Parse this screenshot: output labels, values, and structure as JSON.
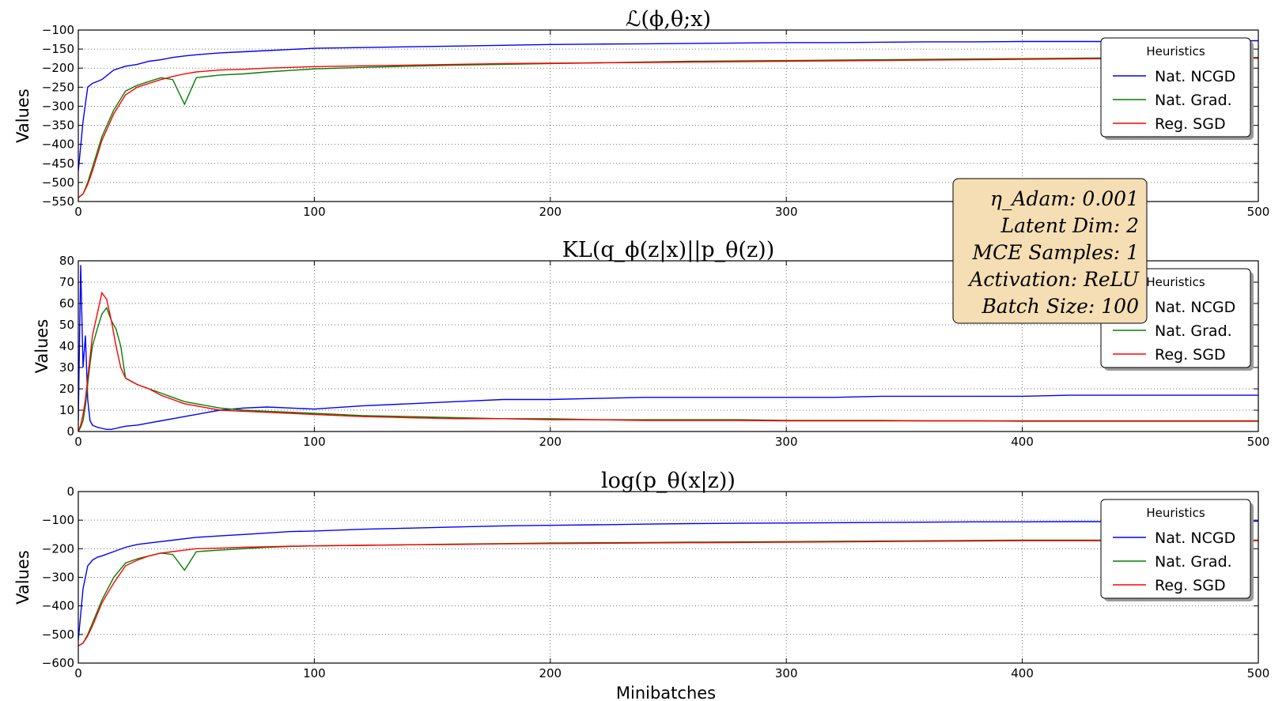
{
  "xlabel": "Minibatches",
  "info_box": {
    "lines": [
      {
        "key": "η_Adam",
        "value": "0.001"
      },
      {
        "key": "Latent Dim",
        "value": "2"
      },
      {
        "key": "MCE Samples",
        "value": "1"
      },
      {
        "key": "Activation",
        "value": "ReLU"
      },
      {
        "key": "Batch Size",
        "value": "100"
      }
    ]
  },
  "colors": {
    "Nat. NCGD": "#0000ff",
    "Nat. Grad.": "#008000",
    "Reg. SGD": "#ff0000"
  },
  "chart_data": [
    {
      "type": "line",
      "title": "ℒ(ϕ,θ;x)",
      "ylabel": "Values",
      "xlabel": "",
      "xlim": [
        0,
        500
      ],
      "ylim": [
        -550,
        -100
      ],
      "xticks": [
        0,
        100,
        200,
        300,
        400,
        500
      ],
      "yticks": [
        -550,
        -500,
        -450,
        -400,
        -350,
        -300,
        -250,
        -200,
        -150,
        -100
      ],
      "grid": true,
      "legend": {
        "title": "Heuristics",
        "position": "top-right"
      },
      "x": [
        0,
        2,
        4,
        6,
        8,
        10,
        15,
        20,
        25,
        30,
        35,
        40,
        45,
        50,
        60,
        70,
        80,
        90,
        100,
        120,
        140,
        160,
        180,
        200,
        220,
        240,
        260,
        280,
        300,
        320,
        340,
        360,
        380,
        400,
        420,
        440,
        460,
        480,
        500
      ],
      "series": [
        {
          "name": "Nat. NCGD",
          "values": [
            -470,
            -340,
            -250,
            -240,
            -235,
            -230,
            -205,
            -195,
            -190,
            -182,
            -178,
            -172,
            -168,
            -165,
            -160,
            -157,
            -154,
            -151,
            -148,
            -146,
            -144,
            -142,
            -140,
            -138,
            -137,
            -136,
            -135,
            -134,
            -133,
            -133,
            -132,
            -131,
            -131,
            -130,
            -130,
            -130,
            -129,
            -129,
            -128
          ]
        },
        {
          "name": "Nat. Grad.",
          "values": [
            -540,
            -530,
            -500,
            -460,
            -420,
            -380,
            -310,
            -260,
            -245,
            -235,
            -225,
            -230,
            -295,
            -225,
            -218,
            -215,
            -210,
            -206,
            -202,
            -198,
            -195,
            -192,
            -190,
            -188,
            -186,
            -184,
            -182,
            -181,
            -180,
            -179,
            -178,
            -177,
            -176,
            -175,
            -174,
            -173,
            -172,
            -172,
            -172
          ]
        },
        {
          "name": "Reg. SGD",
          "values": [
            -540,
            -530,
            -505,
            -470,
            -430,
            -390,
            -320,
            -270,
            -250,
            -240,
            -230,
            -222,
            -215,
            -210,
            -205,
            -203,
            -200,
            -198,
            -196,
            -194,
            -192,
            -190,
            -188,
            -187,
            -186,
            -185,
            -184,
            -183,
            -182,
            -181,
            -180,
            -179,
            -178,
            -177,
            -176,
            -175,
            -174,
            -174,
            -174
          ]
        }
      ]
    },
    {
      "type": "line",
      "title": "KL(q_ϕ(z|x)||p_θ(z))",
      "ylabel": "Values",
      "xlabel": "",
      "xlim": [
        0,
        500
      ],
      "ylim": [
        0,
        80
      ],
      "xticks": [
        0,
        100,
        200,
        300,
        400,
        500
      ],
      "yticks": [
        0,
        10,
        20,
        30,
        40,
        50,
        60,
        70,
        80
      ],
      "grid": true,
      "legend": {
        "title": "Heuristics",
        "position": "top-right"
      },
      "x": [
        0,
        1,
        2,
        3,
        4,
        5,
        6,
        8,
        10,
        12,
        14,
        16,
        18,
        20,
        25,
        30,
        35,
        40,
        45,
        50,
        60,
        70,
        80,
        90,
        100,
        120,
        140,
        160,
        180,
        200,
        220,
        240,
        260,
        280,
        300,
        320,
        340,
        360,
        380,
        400,
        420,
        440,
        460,
        480,
        500
      ],
      "series": [
        {
          "name": "Nat. NCGD",
          "values": [
            5,
            78,
            30,
            45,
            15,
            5,
            3,
            2,
            1.5,
            1,
            1,
            1.5,
            2,
            2.5,
            3,
            4,
            5,
            6,
            7,
            8,
            10,
            11,
            11.5,
            11,
            10.5,
            12,
            13,
            14,
            15,
            15,
            15.5,
            16,
            16,
            16,
            16,
            16,
            16.5,
            16.5,
            16.5,
            16.5,
            17,
            17,
            17,
            17,
            17
          ]
        },
        {
          "name": "Nat. Grad.",
          "values": [
            0,
            2,
            5,
            12,
            22,
            32,
            40,
            48,
            55,
            58,
            52,
            48,
            40,
            25,
            22,
            20,
            18,
            16,
            14,
            13,
            11,
            10,
            9.5,
            9,
            8.5,
            7.5,
            7,
            6.5,
            6,
            6,
            5.5,
            5.5,
            5.5,
            5.5,
            5.2,
            5.2,
            5.2,
            5,
            5,
            5,
            5,
            5,
            5,
            5,
            5
          ]
        },
        {
          "name": "Reg. SGD",
          "values": [
            0,
            3,
            8,
            15,
            25,
            35,
            45,
            55,
            65,
            62,
            52,
            40,
            30,
            25,
            22,
            20,
            17,
            15,
            13,
            12,
            10,
            9.5,
            9,
            8.5,
            8,
            7,
            6.5,
            6,
            6,
            5.5,
            5.5,
            5.2,
            5.2,
            5.2,
            5,
            5,
            5,
            5,
            5,
            4.8,
            4.8,
            4.8,
            4.8,
            4.8,
            4.8
          ]
        }
      ]
    },
    {
      "type": "line",
      "title": "log(p_θ(x|z))",
      "ylabel": "Values",
      "xlabel": "Minibatches",
      "xlim": [
        0,
        500
      ],
      "ylim": [
        -600,
        0
      ],
      "xticks": [
        0,
        100,
        200,
        300,
        400,
        500
      ],
      "yticks": [
        -600,
        -500,
        -400,
        -300,
        -200,
        -100,
        0
      ],
      "grid": true,
      "legend": {
        "title": "Heuristics",
        "position": "top-right"
      },
      "x": [
        0,
        2,
        4,
        6,
        8,
        10,
        15,
        20,
        25,
        30,
        35,
        40,
        45,
        50,
        60,
        70,
        80,
        90,
        100,
        120,
        140,
        160,
        180,
        200,
        220,
        240,
        260,
        280,
        300,
        320,
        340,
        360,
        380,
        400,
        420,
        440,
        460,
        480,
        500
      ],
      "series": [
        {
          "name": "Nat. NCGD",
          "values": [
            -520,
            -340,
            -260,
            -240,
            -230,
            -225,
            -210,
            -195,
            -185,
            -180,
            -175,
            -170,
            -165,
            -160,
            -155,
            -150,
            -145,
            -140,
            -138,
            -132,
            -128,
            -124,
            -120,
            -118,
            -116,
            -114,
            -112,
            -111,
            -110,
            -109,
            -108,
            -107,
            -106,
            -106,
            -105,
            -105,
            -104,
            -104,
            -104
          ]
        },
        {
          "name": "Nat. Grad.",
          "values": [
            -540,
            -530,
            -500,
            -460,
            -420,
            -380,
            -300,
            -250,
            -235,
            -225,
            -215,
            -220,
            -275,
            -210,
            -205,
            -200,
            -195,
            -192,
            -190,
            -188,
            -186,
            -184,
            -182,
            -180,
            -179,
            -178,
            -177,
            -176,
            -175,
            -174,
            -173,
            -172,
            -171,
            -170,
            -170,
            -170,
            -170,
            -170,
            -170
          ]
        },
        {
          "name": "Reg. SGD",
          "values": [
            -540,
            -530,
            -505,
            -470,
            -430,
            -390,
            -320,
            -260,
            -240,
            -225,
            -215,
            -210,
            -205,
            -200,
            -198,
            -195,
            -193,
            -191,
            -190,
            -188,
            -186,
            -185,
            -183,
            -182,
            -181,
            -180,
            -179,
            -178,
            -177,
            -176,
            -175,
            -174,
            -173,
            -172,
            -172,
            -172,
            -172,
            -172,
            -172
          ]
        }
      ]
    }
  ]
}
